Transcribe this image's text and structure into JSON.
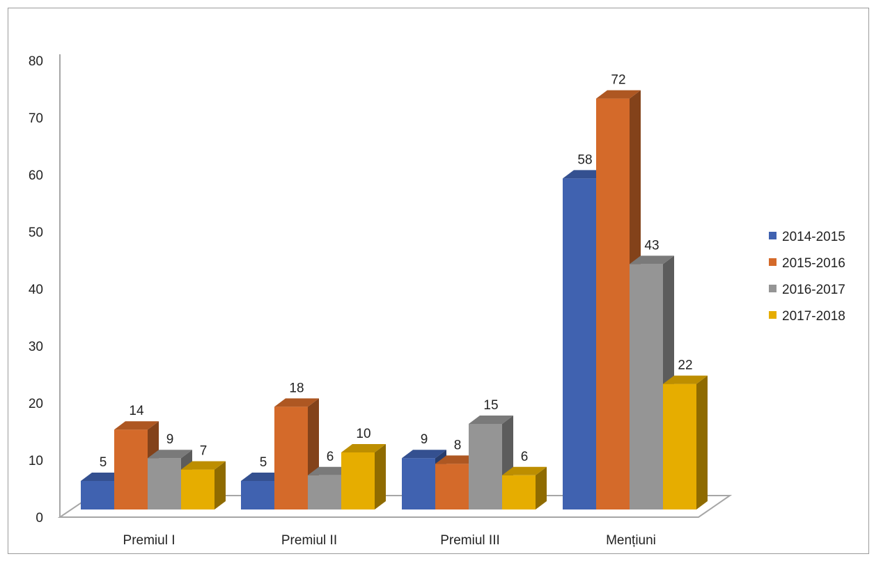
{
  "chart_data": {
    "type": "bar",
    "style": "3d-clustered-column",
    "title": "",
    "xlabel": "",
    "ylabel": "",
    "ylim": [
      0,
      80
    ],
    "yticks": [
      "0",
      "10",
      "20",
      "30",
      "40",
      "50",
      "60",
      "70",
      "80"
    ],
    "grid": false,
    "legend_position": "right",
    "categories": [
      "Premiul I",
      "Premiul II",
      "Premiul III",
      "Mențiuni"
    ],
    "series": [
      {
        "name": "2014-2015",
        "color": "#4062B0",
        "values": [
          5,
          5,
          9,
          58
        ]
      },
      {
        "name": "2015-2016",
        "color": "#D46A2A",
        "values": [
          14,
          18,
          8,
          72
        ]
      },
      {
        "name": "2016-2017",
        "color": "#959595",
        "values": [
          9,
          6,
          15,
          43
        ]
      },
      {
        "name": "2017-2018",
        "color": "#E6AD00",
        "values": [
          7,
          10,
          6,
          22
        ]
      }
    ]
  }
}
